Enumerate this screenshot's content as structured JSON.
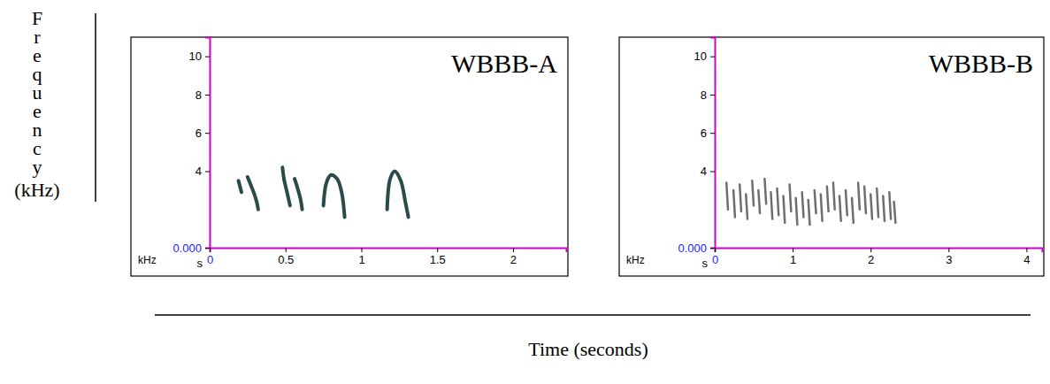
{
  "figure": {
    "xlabel": "Time (seconds)",
    "ylabel": "Frequency (kHz)"
  },
  "chart_data": [
    {
      "type": "line",
      "title": "WBBB-A",
      "xlabel": "s",
      "ylabel": "kHz",
      "xlim": [
        0,
        2.35
      ],
      "ylim": [
        0,
        11
      ],
      "xticks": [
        0,
        0.5,
        1,
        1.5,
        2
      ],
      "yticks": [
        {
          "value": 0,
          "label": "0.000"
        },
        4,
        6,
        8,
        10
      ],
      "color": "#2b4a4a",
      "series": [
        {
          "x": [
            0.19,
            0.2,
            0.21
          ],
          "values": [
            3.5,
            3.2,
            2.9
          ]
        },
        {
          "x": [
            0.25,
            0.27,
            0.29,
            0.31,
            0.32
          ],
          "values": [
            3.7,
            3.3,
            2.9,
            2.4,
            2.0
          ]
        },
        {
          "x": [
            0.48,
            0.49,
            0.51,
            0.53
          ],
          "values": [
            4.2,
            3.6,
            2.9,
            2.2
          ]
        },
        {
          "x": [
            0.56,
            0.58,
            0.6,
            0.61
          ],
          "values": [
            3.6,
            3.1,
            2.5,
            2.0
          ]
        },
        {
          "x": [
            0.75,
            0.77,
            0.8,
            0.84,
            0.87,
            0.89
          ],
          "values": [
            2.2,
            3.4,
            3.8,
            3.6,
            2.9,
            1.6
          ]
        },
        {
          "x": [
            1.17,
            1.19,
            1.22,
            1.26,
            1.29,
            1.31
          ],
          "values": [
            2.0,
            3.6,
            4.0,
            3.5,
            2.4,
            1.6
          ]
        }
      ]
    },
    {
      "type": "line",
      "title": "WBBB-B",
      "xlabel": "s",
      "ylabel": "kHz",
      "xlim": [
        0,
        4.2
      ],
      "ylim": [
        0,
        11
      ],
      "xticks": [
        0,
        1,
        2,
        3,
        4
      ],
      "yticks": [
        {
          "value": 0,
          "label": "0.000"
        },
        4,
        6,
        8,
        10
      ],
      "color": "#6e6e6e",
      "series": [
        {
          "x": [
            0.15,
            0.17
          ],
          "values": [
            3.4,
            2.0
          ]
        },
        {
          "x": [
            0.24,
            0.26
          ],
          "values": [
            3.0,
            1.6
          ]
        },
        {
          "x": [
            0.32,
            0.34
          ],
          "values": [
            3.3,
            1.9
          ]
        },
        {
          "x": [
            0.4,
            0.42
          ],
          "values": [
            2.8,
            1.5
          ]
        },
        {
          "x": [
            0.48,
            0.5
          ],
          "values": [
            3.5,
            2.2
          ]
        },
        {
          "x": [
            0.56,
            0.58
          ],
          "values": [
            3.0,
            1.8
          ]
        },
        {
          "x": [
            0.64,
            0.66
          ],
          "values": [
            3.6,
            2.3
          ]
        },
        {
          "x": [
            0.72,
            0.74
          ],
          "values": [
            2.9,
            1.5
          ]
        },
        {
          "x": [
            0.8,
            0.82
          ],
          "values": [
            3.1,
            1.7
          ]
        },
        {
          "x": [
            0.88,
            0.9
          ],
          "values": [
            2.7,
            1.3
          ]
        },
        {
          "x": [
            0.96,
            0.98
          ],
          "values": [
            3.3,
            1.9
          ]
        },
        {
          "x": [
            1.04,
            1.06
          ],
          "values": [
            2.6,
            1.2
          ]
        },
        {
          "x": [
            1.12,
            1.14
          ],
          "values": [
            2.9,
            1.6
          ]
        },
        {
          "x": [
            1.2,
            1.22
          ],
          "values": [
            2.5,
            1.2
          ]
        },
        {
          "x": [
            1.28,
            1.3
          ],
          "values": [
            3.0,
            1.8
          ]
        },
        {
          "x": [
            1.36,
            1.38
          ],
          "values": [
            2.8,
            1.4
          ]
        },
        {
          "x": [
            1.44,
            1.46
          ],
          "values": [
            3.2,
            1.9
          ]
        },
        {
          "x": [
            1.52,
            1.54
          ],
          "values": [
            3.4,
            2.0
          ]
        },
        {
          "x": [
            1.6,
            1.62
          ],
          "values": [
            2.7,
            1.4
          ]
        },
        {
          "x": [
            1.68,
            1.7
          ],
          "values": [
            3.0,
            1.7
          ]
        },
        {
          "x": [
            1.76,
            1.78
          ],
          "values": [
            2.6,
            1.3
          ]
        },
        {
          "x": [
            1.84,
            1.86
          ],
          "values": [
            3.4,
            2.0
          ]
        },
        {
          "x": [
            1.92,
            1.94
          ],
          "values": [
            3.2,
            1.8
          ]
        },
        {
          "x": [
            2.0,
            2.02
          ],
          "values": [
            2.8,
            1.5
          ]
        },
        {
          "x": [
            2.08,
            2.1
          ],
          "values": [
            3.1,
            1.6
          ]
        },
        {
          "x": [
            2.16,
            2.18
          ],
          "values": [
            2.7,
            1.4
          ]
        },
        {
          "x": [
            2.24,
            2.26
          ],
          "values": [
            2.9,
            1.5
          ]
        },
        {
          "x": [
            2.3,
            2.32
          ],
          "values": [
            2.4,
            1.3
          ]
        }
      ]
    }
  ]
}
